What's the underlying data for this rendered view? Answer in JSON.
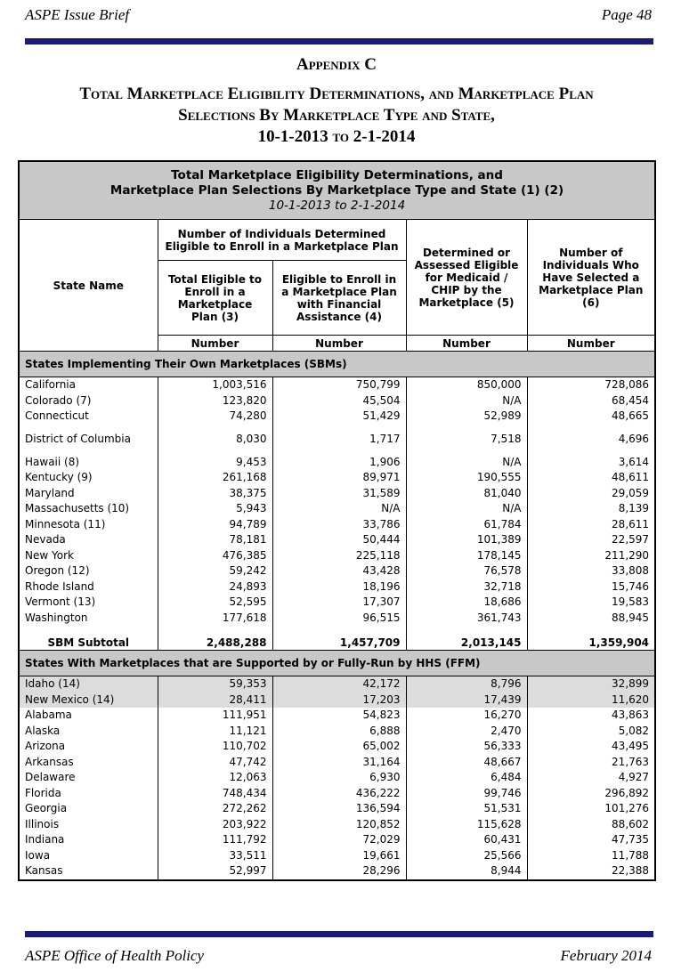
{
  "header": {
    "left": "ASPE Issue Brief",
    "right": "Page 48"
  },
  "appendix": "Appendix C",
  "title": {
    "lines": [
      "Total Marketplace Eligibility Determinations, and Marketplace Plan",
      "Selections By Marketplace Type and State,",
      "10-1-2013 to 2-1-2014"
    ]
  },
  "table": {
    "caption": [
      "Total Marketplace Eligibility Determinations, and",
      "Marketplace Plan Selections By Marketplace Type and State (1) (2)",
      "10-1-2013 to 2-1-2014"
    ],
    "columns": {
      "state": "State Name",
      "group": "Number of Individuals Determined Eligible to Enroll in a Marketplace Plan",
      "col3": "Total Eligible to Enroll in a Marketplace Plan (3)",
      "col4": "Eligible to Enroll in a Marketplace Plan with Financial Assistance (4)",
      "col5": "Determined or Assessed Eligible for Medicaid / CHIP by the Marketplace (5)",
      "col6": "Number of Individuals Who Have Selected a Marketplace Plan (6)"
    },
    "units": [
      "Number",
      "Number",
      "Number",
      "Number"
    ],
    "sections": [
      {
        "title": "States Implementing Their Own Marketplaces (SBMs)",
        "rows": [
          [
            "California",
            "1,003,516",
            "750,799",
            "850,000",
            "728,086"
          ],
          [
            "Colorado (7)",
            "123,820",
            "45,504",
            "N/A",
            "68,454"
          ],
          [
            "Connecticut",
            "74,280",
            "51,429",
            "52,989",
            "48,665"
          ],
          [
            "District of Columbia",
            "8,030",
            "1,717",
            "7,518",
            "4,696"
          ],
          [
            "Hawaii (8)",
            "9,453",
            "1,906",
            "N/A",
            "3,614"
          ],
          [
            "Kentucky (9)",
            "261,168",
            "89,971",
            "190,555",
            "48,611"
          ],
          [
            "Maryland",
            "38,375",
            "31,589",
            "81,040",
            "29,059"
          ],
          [
            "Massachusetts (10)",
            "5,943",
            "N/A",
            "N/A",
            "8,139"
          ],
          [
            "Minnesota (11)",
            "94,789",
            "33,786",
            "61,784",
            "28,611"
          ],
          [
            "Nevada",
            "78,181",
            "50,444",
            "101,389",
            "22,597"
          ],
          [
            "New York",
            "476,385",
            "225,118",
            "178,145",
            "211,290"
          ],
          [
            "Oregon (12)",
            "59,242",
            "43,428",
            "76,578",
            "33,808"
          ],
          [
            "Rhode Island",
            "24,893",
            "18,196",
            "32,718",
            "15,746"
          ],
          [
            "Vermont (13)",
            "52,595",
            "17,307",
            "18,686",
            "19,583"
          ],
          [
            "Washington",
            "177,618",
            "96,515",
            "361,743",
            "88,945"
          ]
        ],
        "subtotal": [
          "SBM Subtotal",
          "2,488,288",
          "1,457,709",
          "2,013,145",
          "1,359,904"
        ]
      },
      {
        "title": "States With Marketplaces that are Supported by or Fully-Run by HHS (FFM)",
        "rows": [
          [
            "Idaho (14)",
            "59,353",
            "42,172",
            "8,796",
            "32,899"
          ],
          [
            "New Mexico (14)",
            "28,411",
            "17,203",
            "17,439",
            "11,620"
          ],
          [
            "Alabama",
            "111,951",
            "54,823",
            "16,270",
            "43,863"
          ],
          [
            "Alaska",
            "11,121",
            "6,888",
            "2,470",
            "5,082"
          ],
          [
            "Arizona",
            "110,702",
            "65,002",
            "56,333",
            "43,495"
          ],
          [
            "Arkansas",
            "47,742",
            "31,164",
            "48,667",
            "21,763"
          ],
          [
            "Delaware",
            "12,063",
            "6,930",
            "6,484",
            "4,927"
          ],
          [
            "Florida",
            "748,434",
            "436,222",
            "99,746",
            "296,892"
          ],
          [
            "Georgia",
            "272,262",
            "136,594",
            "51,531",
            "101,276"
          ],
          [
            "Illinois",
            "203,922",
            "120,852",
            "115,628",
            "88,602"
          ],
          [
            "Indiana",
            "111,792",
            "72,029",
            "60,431",
            "47,735"
          ],
          [
            "Iowa",
            "33,511",
            "19,661",
            "25,566",
            "11,788"
          ],
          [
            "Kansas",
            "52,997",
            "28,296",
            "8,944",
            "22,388"
          ]
        ]
      }
    ]
  },
  "footer": {
    "left": "ASPE Office of Health Policy",
    "right": "February 2014"
  }
}
